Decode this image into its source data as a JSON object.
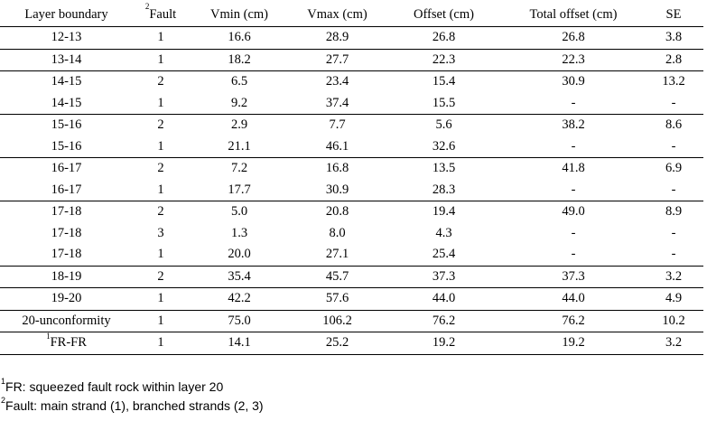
{
  "table": {
    "headers": {
      "layer": "Layer boundary",
      "fault_sup": "2",
      "fault": "Fault",
      "vmin": "Vmin (cm)",
      "vmax": "Vmax (cm)",
      "offset": "Offset (cm)",
      "total": "Total offset (cm)",
      "se": "SE"
    },
    "rows": [
      {
        "layer": "12-13",
        "fault": "1",
        "vmin": "16.6",
        "vmax": "28.9",
        "offset": "26.8",
        "total": "26.8",
        "se": "3.8"
      },
      {
        "layer": "13-14",
        "fault": "1",
        "vmin": "18.2",
        "vmax": "27.7",
        "offset": "22.3",
        "total": "22.3",
        "se": "2.8"
      },
      {
        "layer": "14-15",
        "fault": "2",
        "vmin": "6.5",
        "vmax": "23.4",
        "offset": "15.4",
        "total": "30.9",
        "se": "13.2"
      },
      {
        "layer": "14-15",
        "fault": "1",
        "vmin": "9.2",
        "vmax": "37.4",
        "offset": "15.5",
        "total": "-",
        "se": "-"
      },
      {
        "layer": "15-16",
        "fault": "2",
        "vmin": "2.9",
        "vmax": "7.7",
        "offset": "5.6",
        "total": "38.2",
        "se": "8.6"
      },
      {
        "layer": "15-16",
        "fault": "1",
        "vmin": "21.1",
        "vmax": "46.1",
        "offset": "32.6",
        "total": "-",
        "se": "-"
      },
      {
        "layer": "16-17",
        "fault": "2",
        "vmin": "7.2",
        "vmax": "16.8",
        "offset": "13.5",
        "total": "41.8",
        "se": "6.9"
      },
      {
        "layer": "16-17",
        "fault": "1",
        "vmin": "17.7",
        "vmax": "30.9",
        "offset": "28.3",
        "total": "-",
        "se": "-"
      },
      {
        "layer": "17-18",
        "fault": "2",
        "vmin": "5.0",
        "vmax": "20.8",
        "offset": "19.4",
        "total": "49.0",
        "se": "8.9"
      },
      {
        "layer": "17-18",
        "fault": "3",
        "vmin": "1.3",
        "vmax": "8.0",
        "offset": "4.3",
        "total": "-",
        "se": "-"
      },
      {
        "layer": "17-18",
        "fault": "1",
        "vmin": "20.0",
        "vmax": "27.1",
        "offset": "25.4",
        "total": "-",
        "se": "-"
      },
      {
        "layer": "18-19",
        "fault": "2",
        "vmin": "35.4",
        "vmax": "45.7",
        "offset": "37.3",
        "total": "37.3",
        "se": "3.2"
      },
      {
        "layer": "19-20",
        "fault": "1",
        "vmin": "42.2",
        "vmax": "57.6",
        "offset": "44.0",
        "total": "44.0",
        "se": "4.9"
      },
      {
        "layer": "20-unconformity",
        "fault": "1",
        "vmin": "75.0",
        "vmax": "106.2",
        "offset": "76.2",
        "total": "76.2",
        "se": "10.2"
      },
      {
        "layer_sup": "1",
        "layer": "FR-FR",
        "fault": "1",
        "vmin": "14.1",
        "vmax": "25.2",
        "offset": "19.2",
        "total": "19.2",
        "se": "3.2"
      }
    ]
  },
  "notes": {
    "note1_sup": "1",
    "note1": "FR: squeezed fault rock within layer 20",
    "note2_sup": "2",
    "note2": "Fault: main strand (1), branched strands (2, 3)"
  }
}
